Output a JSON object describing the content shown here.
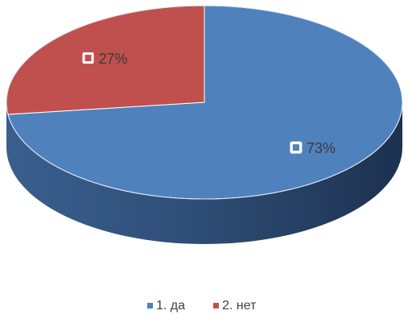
{
  "chart_data": {
    "type": "pie",
    "style": "3d",
    "categories": [
      "1. да",
      "2. нет"
    ],
    "values": [
      73,
      27
    ],
    "data_labels": [
      "73%",
      "27%"
    ],
    "colors": [
      "#4f81bd",
      "#c0504d"
    ],
    "side_colors": {
      "light": "#3d6494",
      "dark": "#1f3552"
    },
    "legend": {
      "position": "bottom"
    }
  }
}
